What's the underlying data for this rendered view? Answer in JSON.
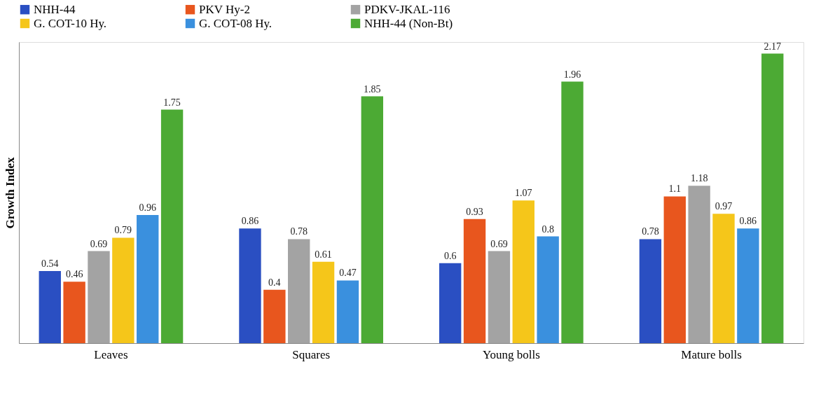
{
  "chart_data": {
    "type": "bar",
    "ylabel": "Growth Index",
    "categories": [
      "Leaves",
      "Squares",
      "Young bolls",
      "Mature bolls"
    ],
    "series": [
      {
        "name": "NHH-44",
        "color": "#2a4fc2",
        "values": [
          0.54,
          0.86,
          0.6,
          0.78
        ]
      },
      {
        "name": "PKV Hy-2",
        "color": "#e8561e",
        "values": [
          0.46,
          0.4,
          0.93,
          1.1
        ]
      },
      {
        "name": "PDKV-JKAL-116",
        "color": "#a3a3a3",
        "values": [
          0.69,
          0.78,
          0.69,
          1.18
        ]
      },
      {
        "name": "G. COT-10 Hy.",
        "color": "#f5c61a",
        "values": [
          0.79,
          0.61,
          1.07,
          0.97
        ]
      },
      {
        "name": "G. COT-08 Hy.",
        "color": "#3a90de",
        "values": [
          0.96,
          0.47,
          0.8,
          0.86
        ]
      },
      {
        "name": "NHH-44 (Non-Bt)",
        "color": "#4caa34",
        "values": [
          1.75,
          1.85,
          1.96,
          2.17
        ]
      }
    ],
    "data_labels": true,
    "grid": false,
    "legend": "top",
    "tick_labels": "x"
  }
}
